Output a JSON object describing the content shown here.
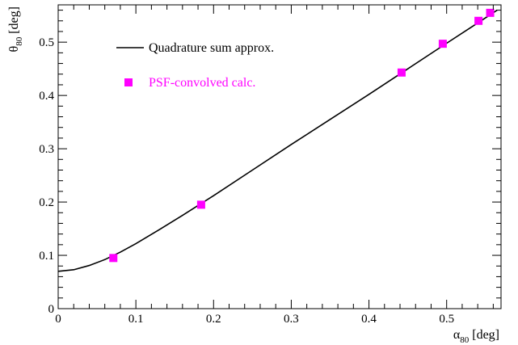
{
  "chart_data": {
    "type": "scatter",
    "xlabel": "α",
    "xlabel_sub": "80",
    "xlabel_unit": "[deg]",
    "ylabel": "θ",
    "ylabel_sub": "80",
    "ylabel_unit": "[deg]",
    "xlim": [
      0,
      0.57
    ],
    "ylim": [
      0,
      0.57
    ],
    "x_ticks": [
      0,
      0.1,
      0.2,
      0.3,
      0.4,
      0.5
    ],
    "x_tick_labels": [
      "0",
      "0.1",
      "0.2",
      "0.3",
      "0.4",
      "0.5"
    ],
    "y_ticks": [
      0,
      0.1,
      0.2,
      0.3,
      0.4,
      0.5
    ],
    "y_tick_labels": [
      "0",
      "0.1",
      "0.2",
      "0.3",
      "0.4",
      "0.5"
    ],
    "grid": false,
    "legend_position": "top-left",
    "series": [
      {
        "name": "Quadrature sum approx.",
        "kind": "line",
        "color": "#000000",
        "x": [
          0,
          0.02,
          0.04,
          0.06,
          0.08,
          0.1,
          0.13,
          0.16,
          0.2,
          0.25,
          0.3,
          0.35,
          0.4,
          0.45,
          0.5,
          0.54,
          0.565
        ],
        "y": [
          0.07,
          0.073,
          0.081,
          0.092,
          0.106,
          0.122,
          0.148,
          0.175,
          0.212,
          0.26,
          0.308,
          0.355,
          0.402,
          0.45,
          0.498,
          0.536,
          0.56
        ]
      },
      {
        "name": "PSF-convolved calc.",
        "kind": "marker",
        "marker": "square",
        "color": "#ff00ff",
        "x": [
          0.071,
          0.184,
          0.442,
          0.495,
          0.541,
          0.556
        ],
        "y": [
          0.095,
          0.195,
          0.443,
          0.497,
          0.54,
          0.555
        ]
      }
    ]
  }
}
